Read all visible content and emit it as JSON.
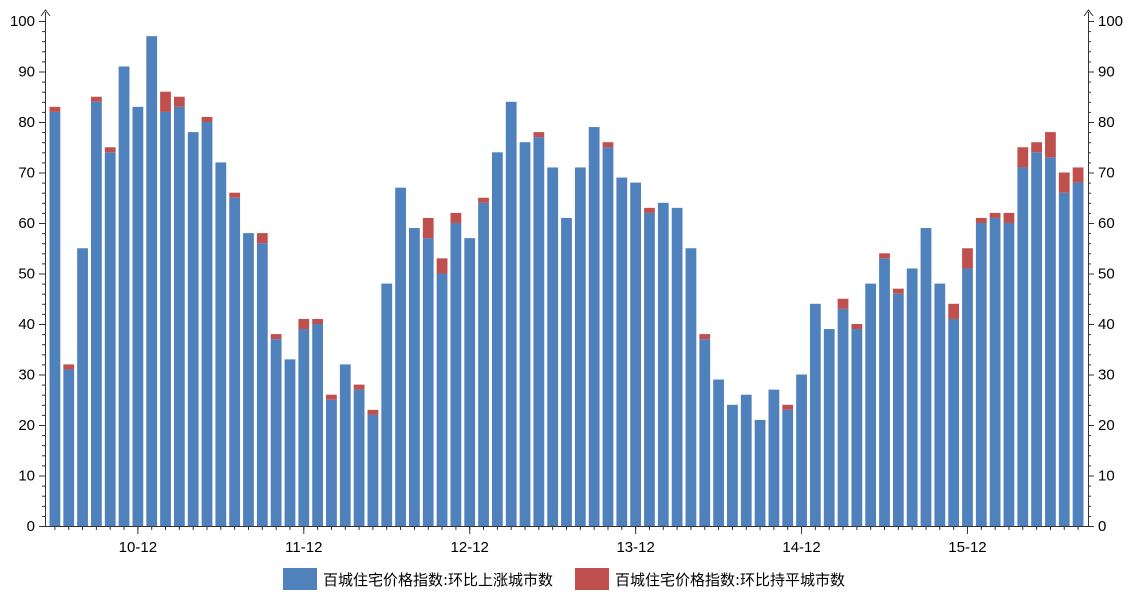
{
  "chart_data": {
    "type": "bar",
    "stacked": true,
    "x_ticks": [
      "10-12",
      "11-12",
      "12-12",
      "13-12",
      "14-12",
      "15-12"
    ],
    "x_tick_indices": [
      6,
      18,
      30,
      42,
      54,
      66
    ],
    "ylim": [
      0,
      100
    ],
    "y_ticks": [
      0,
      10,
      20,
      30,
      40,
      50,
      60,
      70,
      80,
      90,
      100
    ],
    "dual_y_axis": true,
    "legend_position": "bottom",
    "series": [
      {
        "name": "百城住宅价格指数:环比上涨城市数",
        "color": "#4f81bd",
        "values": [
          82,
          31,
          55,
          84,
          74,
          91,
          83,
          97,
          82,
          83,
          78,
          80,
          72,
          65,
          58,
          56,
          37,
          33,
          39,
          40,
          25,
          32,
          27,
          22,
          48,
          67,
          59,
          57,
          50,
          60,
          57,
          64,
          74,
          84,
          76,
          77,
          71,
          61,
          71,
          79,
          75,
          69,
          68,
          62,
          64,
          63,
          55,
          37,
          29,
          24,
          26,
          21,
          27,
          23,
          30,
          44,
          39,
          43,
          39,
          48,
          53,
          46,
          51,
          59,
          48,
          41,
          51,
          60,
          61,
          60,
          71,
          74,
          73,
          66,
          68
        ]
      },
      {
        "name": "百城住宅价格指数:环比持平城市数",
        "color": "#c0504d",
        "values": [
          1,
          1,
          0,
          1,
          1,
          0,
          0,
          0,
          4,
          2,
          0,
          1,
          0,
          1,
          0,
          2,
          1,
          0,
          2,
          1,
          1,
          0,
          1,
          1,
          0,
          0,
          0,
          4,
          3,
          2,
          0,
          1,
          0,
          0,
          0,
          1,
          0,
          0,
          0,
          0,
          1,
          0,
          0,
          1,
          0,
          0,
          0,
          1,
          0,
          0,
          0,
          0,
          0,
          1,
          0,
          0,
          0,
          2,
          1,
          0,
          1,
          1,
          0,
          0,
          0,
          3,
          4,
          1,
          1,
          2,
          4,
          2,
          5,
          4,
          3
        ]
      }
    ]
  }
}
